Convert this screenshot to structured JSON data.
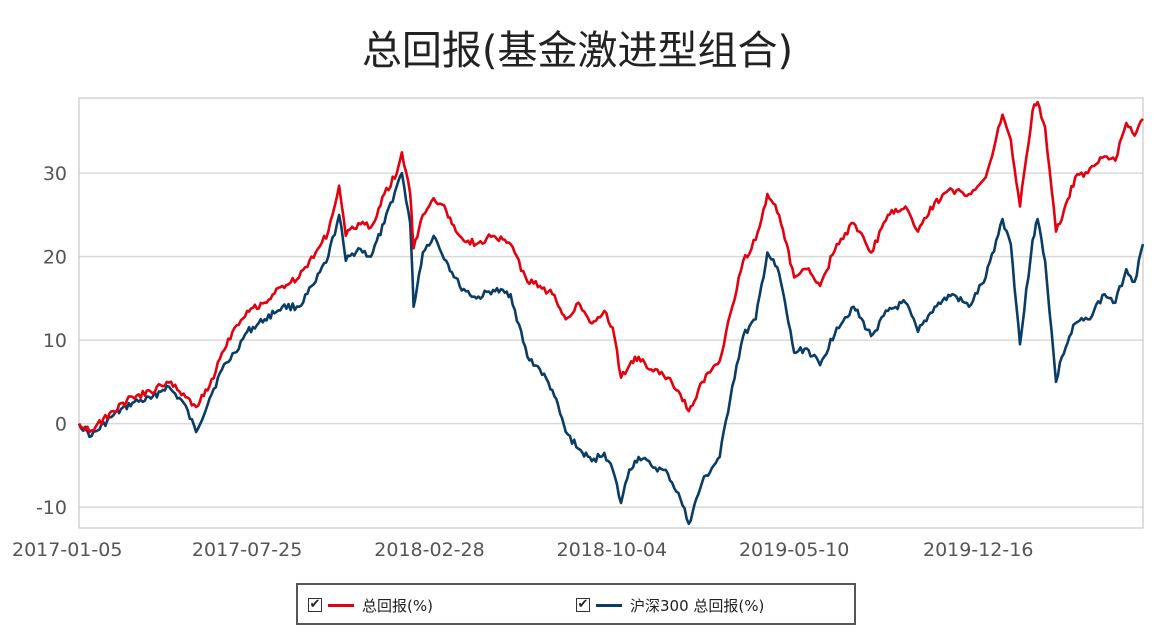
{
  "chart_data": {
    "type": "line",
    "title": "总回报(基金激进型组合)",
    "xlabel": "",
    "ylabel": "",
    "x_tick_labels": [
      "2017-01-05",
      "2017-07-25",
      "2018-02-28",
      "2018-10-04",
      "2019-05-10",
      "2019-12-16"
    ],
    "x_range": [
      "2017-01-05",
      "2020-06-30"
    ],
    "y_ticks": [
      -10,
      0,
      10,
      20,
      30
    ],
    "ylim": [
      -12.5,
      39
    ],
    "grid": "horizontal",
    "legend_position": "bottom",
    "series": [
      {
        "name": "总回报(%)",
        "color": "#e3000f",
        "points": [
          [
            "2017-01-05",
            0
          ],
          [
            "2017-01-20",
            -0.8
          ],
          [
            "2017-02-15",
            1.5
          ],
          [
            "2017-03-10",
            3.2
          ],
          [
            "2017-04-01",
            3.8
          ],
          [
            "2017-04-20",
            5.0
          ],
          [
            "2017-05-10",
            3.6
          ],
          [
            "2017-05-25",
            2.0
          ],
          [
            "2017-06-10",
            4.5
          ],
          [
            "2017-06-25",
            8.5
          ],
          [
            "2017-07-10",
            11.5
          ],
          [
            "2017-07-25",
            13.5
          ],
          [
            "2017-08-15",
            14.5
          ],
          [
            "2017-09-05",
            16.5
          ],
          [
            "2017-09-25",
            17.5
          ],
          [
            "2017-10-15",
            20.5
          ],
          [
            "2017-10-30",
            23.0
          ],
          [
            "2017-11-12",
            28.5
          ],
          [
            "2017-11-20",
            22.5
          ],
          [
            "2017-12-05",
            24.0
          ],
          [
            "2017-12-20",
            23.5
          ],
          [
            "2018-01-05",
            27.5
          ],
          [
            "2018-01-20",
            30.0
          ],
          [
            "2018-01-26",
            32.5
          ],
          [
            "2018-02-05",
            27.5
          ],
          [
            "2018-02-09",
            21.0
          ],
          [
            "2018-02-20",
            25.0
          ],
          [
            "2018-03-05",
            27.0
          ],
          [
            "2018-03-20",
            25.5
          ],
          [
            "2018-04-05",
            22.5
          ],
          [
            "2018-04-25",
            21.5
          ],
          [
            "2018-05-15",
            22.5
          ],
          [
            "2018-06-05",
            21.5
          ],
          [
            "2018-06-25",
            17.0
          ],
          [
            "2018-07-10",
            16.5
          ],
          [
            "2018-07-25",
            15.5
          ],
          [
            "2018-08-10",
            12.5
          ],
          [
            "2018-08-25",
            14.5
          ],
          [
            "2018-09-10",
            12.0
          ],
          [
            "2018-09-25",
            13.5
          ],
          [
            "2018-10-05",
            11.5
          ],
          [
            "2018-10-15",
            5.5
          ],
          [
            "2018-10-25",
            7.0
          ],
          [
            "2018-11-05",
            8.0
          ],
          [
            "2018-11-20",
            6.5
          ],
          [
            "2018-12-10",
            5.5
          ],
          [
            "2018-12-25",
            3.5
          ],
          [
            "2019-01-04",
            1.5
          ],
          [
            "2019-01-20",
            5.0
          ],
          [
            "2019-02-10",
            7.5
          ],
          [
            "2019-02-25",
            14.0
          ],
          [
            "2019-03-10",
            19.5
          ],
          [
            "2019-03-25",
            22.0
          ],
          [
            "2019-04-08",
            27.5
          ],
          [
            "2019-04-22",
            25.0
          ],
          [
            "2019-05-10",
            17.5
          ],
          [
            "2019-05-25",
            18.5
          ],
          [
            "2019-06-10",
            16.5
          ],
          [
            "2019-06-30",
            21.5
          ],
          [
            "2019-07-20",
            24.0
          ],
          [
            "2019-08-10",
            20.5
          ],
          [
            "2019-08-30",
            25.0
          ],
          [
            "2019-09-20",
            26.0
          ],
          [
            "2019-10-05",
            23.0
          ],
          [
            "2019-10-25",
            26.5
          ],
          [
            "2019-11-15",
            28.0
          ],
          [
            "2019-12-05",
            27.5
          ],
          [
            "2019-12-25",
            29.5
          ],
          [
            "2020-01-14",
            37.0
          ],
          [
            "2020-01-24",
            34.0
          ],
          [
            "2020-02-04",
            26.0
          ],
          [
            "2020-02-19",
            37.5
          ],
          [
            "2020-02-25",
            38.5
          ],
          [
            "2020-03-05",
            35.5
          ],
          [
            "2020-03-18",
            23.0
          ],
          [
            "2020-03-25",
            24.5
          ],
          [
            "2020-04-10",
            29.5
          ],
          [
            "2020-04-25",
            30.0
          ],
          [
            "2020-05-15",
            32.0
          ],
          [
            "2020-05-28",
            31.5
          ],
          [
            "2020-06-10",
            36.0
          ],
          [
            "2020-06-20",
            34.5
          ],
          [
            "2020-06-30",
            36.5
          ]
        ]
      },
      {
        "name": "沪深300 总回报(%)",
        "color": "#0a3d66",
        "points": [
          [
            "2017-01-05",
            0
          ],
          [
            "2017-01-20",
            -1.5
          ],
          [
            "2017-02-15",
            1.0
          ],
          [
            "2017-03-10",
            2.5
          ],
          [
            "2017-04-01",
            3.0
          ],
          [
            "2017-04-20",
            4.5
          ],
          [
            "2017-05-10",
            2.5
          ],
          [
            "2017-05-25",
            -1.0
          ],
          [
            "2017-06-10",
            3.0
          ],
          [
            "2017-06-25",
            6.5
          ],
          [
            "2017-07-10",
            8.5
          ],
          [
            "2017-07-25",
            11.0
          ],
          [
            "2017-08-15",
            12.5
          ],
          [
            "2017-09-05",
            14.0
          ],
          [
            "2017-09-25",
            14.0
          ],
          [
            "2017-10-15",
            17.0
          ],
          [
            "2017-10-30",
            20.0
          ],
          [
            "2017-11-12",
            25.0
          ],
          [
            "2017-11-20",
            19.5
          ],
          [
            "2017-12-05",
            21.0
          ],
          [
            "2017-12-20",
            20.0
          ],
          [
            "2018-01-05",
            24.0
          ],
          [
            "2018-01-20",
            28.5
          ],
          [
            "2018-01-26",
            30.0
          ],
          [
            "2018-02-05",
            24.0
          ],
          [
            "2018-02-09",
            14.0
          ],
          [
            "2018-02-20",
            20.5
          ],
          [
            "2018-03-05",
            22.5
          ],
          [
            "2018-03-20",
            19.5
          ],
          [
            "2018-04-05",
            16.5
          ],
          [
            "2018-04-25",
            15.0
          ],
          [
            "2018-05-15",
            16.0
          ],
          [
            "2018-06-05",
            15.5
          ],
          [
            "2018-06-25",
            8.0
          ],
          [
            "2018-07-10",
            6.5
          ],
          [
            "2018-07-25",
            4.0
          ],
          [
            "2018-08-10",
            -1.0
          ],
          [
            "2018-08-25",
            -3.0
          ],
          [
            "2018-09-10",
            -4.5
          ],
          [
            "2018-09-25",
            -3.5
          ],
          [
            "2018-10-05",
            -5.5
          ],
          [
            "2018-10-15",
            -9.5
          ],
          [
            "2018-10-25",
            -5.5
          ],
          [
            "2018-11-05",
            -4.0
          ],
          [
            "2018-11-20",
            -5.0
          ],
          [
            "2018-12-10",
            -6.0
          ],
          [
            "2018-12-25",
            -9.0
          ],
          [
            "2019-01-04",
            -12.0
          ],
          [
            "2019-01-20",
            -7.0
          ],
          [
            "2019-02-10",
            -4.0
          ],
          [
            "2019-02-25",
            4.5
          ],
          [
            "2019-03-10",
            10.5
          ],
          [
            "2019-03-25",
            12.5
          ],
          [
            "2019-04-08",
            20.5
          ],
          [
            "2019-04-22",
            18.0
          ],
          [
            "2019-05-10",
            8.5
          ],
          [
            "2019-05-25",
            9.0
          ],
          [
            "2019-06-10",
            7.0
          ],
          [
            "2019-06-30",
            11.5
          ],
          [
            "2019-07-20",
            14.0
          ],
          [
            "2019-08-10",
            10.5
          ],
          [
            "2019-08-30",
            13.5
          ],
          [
            "2019-09-20",
            14.5
          ],
          [
            "2019-10-05",
            11.0
          ],
          [
            "2019-10-25",
            14.0
          ],
          [
            "2019-11-15",
            15.5
          ],
          [
            "2019-12-05",
            14.0
          ],
          [
            "2019-12-25",
            17.5
          ],
          [
            "2020-01-14",
            24.5
          ],
          [
            "2020-01-24",
            21.5
          ],
          [
            "2020-02-04",
            9.5
          ],
          [
            "2020-02-19",
            22.0
          ],
          [
            "2020-02-25",
            24.5
          ],
          [
            "2020-03-05",
            19.5
          ],
          [
            "2020-03-18",
            5.0
          ],
          [
            "2020-03-25",
            8.0
          ],
          [
            "2020-04-10",
            12.0
          ],
          [
            "2020-04-25",
            12.5
          ],
          [
            "2020-05-15",
            15.5
          ],
          [
            "2020-05-28",
            14.5
          ],
          [
            "2020-06-10",
            18.5
          ],
          [
            "2020-06-20",
            17.0
          ],
          [
            "2020-06-30",
            21.5
          ]
        ]
      }
    ]
  },
  "legend": {
    "items": [
      {
        "label": "总回报(%)",
        "color": "#e3000f",
        "checked": true
      },
      {
        "label": "沪深300 总回报(%)",
        "color": "#0a3d66",
        "checked": true
      }
    ]
  }
}
